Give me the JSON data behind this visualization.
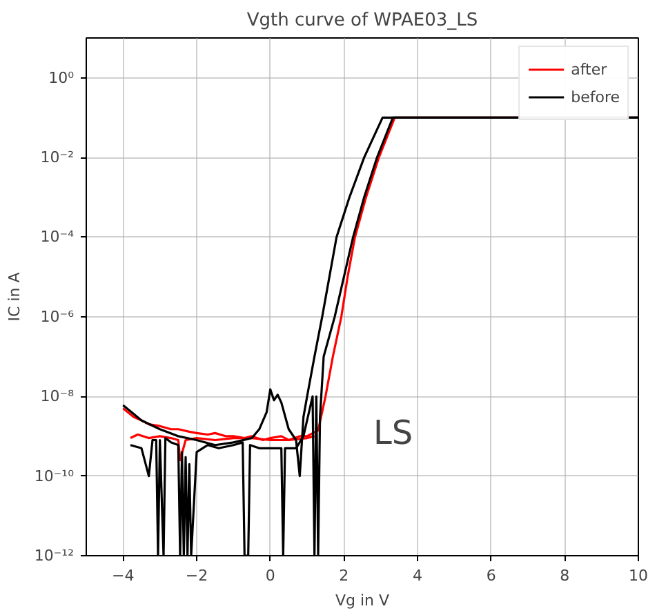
{
  "chart_data": {
    "type": "line",
    "title": "Vgth curve of WPAE03_LS",
    "xlabel": "Vg in V",
    "ylabel": "IC in A",
    "log": "y",
    "grid": true,
    "legend": "top right",
    "line_style": "solid",
    "marker": "none",
    "xlim": [
      -5,
      10
    ],
    "ylim": [
      1e-12,
      10
    ],
    "xticks": [
      {
        "value": -4,
        "label": "−4"
      },
      {
        "value": -2,
        "label": "−2"
      },
      0,
      2,
      4,
      6,
      8,
      10
    ],
    "yticks": [
      {
        "value": 1e-12,
        "label": "10⁻¹²"
      },
      {
        "value": 1e-10,
        "label": "10⁻¹⁰"
      },
      {
        "value": 1e-08,
        "label": "10⁻⁸"
      },
      {
        "value": 1e-06,
        "label": "10⁻⁶"
      },
      {
        "value": 0.0001,
        "label": "10⁻⁴"
      },
      {
        "value": 0.01,
        "label": "10⁻²"
      },
      {
        "value": 1,
        "label": "10⁰"
      }
    ],
    "annotations": [
      "LS"
    ],
    "series": [
      {
        "name": "after",
        "color": "#ff0000",
        "x": [
          -4,
          -3.7,
          -3.5,
          -3.3,
          -3,
          -2.7,
          -2.5,
          -2.2,
          -2,
          -1.7,
          -1.5,
          -1.2,
          -1,
          -0.7,
          -0.5,
          -0.2,
          0,
          0.3,
          0.5,
          0.8,
          1,
          1.3,
          1.5,
          1.7,
          1.93,
          2.1,
          2.3,
          2.6,
          2.95,
          3.38,
          10
        ],
        "values": [
          5e-09,
          3e-09,
          2.5e-09,
          2e-09,
          1.8e-09,
          1.5e-09,
          1.5e-09,
          1.3e-09,
          1.2e-09,
          1.1e-09,
          1.2e-09,
          1e-09,
          1e-09,
          9e-10,
          1e-09,
          8e-10,
          9e-10,
          1e-09,
          8e-10,
          1e-09,
          1e-09,
          1.4e-09,
          1e-08,
          1e-07,
          1e-06,
          1e-05,
          0.0001,
          0.001,
          0.01,
          0.1,
          0.1
        ]
      },
      {
        "color": "#ff0000",
        "x": [
          -3.8,
          -3.6,
          -3.3,
          -3,
          -2.7,
          -2.5,
          -2.45,
          -2.3,
          -2,
          -1.5,
          -1,
          -0.5,
          0,
          0.5,
          1,
          1.2
        ],
        "values": [
          9e-10,
          1.1e-09,
          9e-10,
          1e-09,
          9e-10,
          8e-10,
          2.5e-10,
          8e-10,
          9e-10,
          8e-10,
          9e-10,
          9e-10,
          8e-10,
          8e-10,
          9e-10,
          1e-09
        ]
      },
      {
        "name": "before",
        "color": "#000000",
        "x": [
          -4,
          -3.5,
          -3,
          -2.5,
          -2,
          -1.5,
          -1,
          -0.5,
          -0.3,
          -0.1,
          0,
          0.1,
          0.2,
          0.3,
          0.5,
          0.7,
          0.8,
          0.9,
          1,
          1.2,
          1.41,
          1.8,
          2.15,
          2.55,
          3.05,
          10
        ],
        "values": [
          6e-09,
          2.5e-09,
          1.5e-09,
          1e-09,
          8e-10,
          6e-10,
          7e-10,
          9e-10,
          1.5e-09,
          4e-09,
          1.5e-08,
          8e-09,
          1.1e-08,
          7e-09,
          1.5e-09,
          8e-10,
          1e-10,
          3e-09,
          1e-08,
          1e-07,
          1e-06,
          0.0001,
          0.001,
          0.01,
          0.1,
          0.1
        ]
      },
      {
        "color": "#000000",
        "x": [
          -3.8,
          -3.5,
          -3.3,
          -3.2,
          -3.1,
          -3.05,
          -3,
          -2.9,
          -2.85,
          -2.7,
          -2.5,
          -2.45,
          -2.4,
          -2.35,
          -2.3,
          -2.25,
          -2.2,
          -2.15,
          -2,
          -1.7,
          -1.4,
          -1,
          -0.75,
          -0.7,
          -0.6,
          -0.55,
          -0.3,
          0,
          0.3,
          0.35,
          0.4,
          0.7,
          0.9,
          1.15,
          1.2,
          1.25,
          1.3,
          1.35,
          1.45,
          1.75,
          2.25,
          2.55,
          2.9,
          3.33,
          10
        ],
        "values": [
          6e-10,
          5e-10,
          1e-10,
          8e-10,
          8e-10,
          1e-12,
          8e-10,
          1e-12,
          9e-10,
          7e-10,
          6e-10,
          1e-12,
          4e-10,
          1e-12,
          3e-10,
          1e-12,
          2e-10,
          1e-12,
          4e-10,
          6e-10,
          5e-10,
          6e-10,
          7e-10,
          1e-12,
          1e-12,
          6e-10,
          5e-10,
          5e-10,
          5e-10,
          1e-12,
          5e-10,
          5e-10,
          1e-09,
          1e-08,
          1e-12,
          1e-08,
          1e-12,
          3e-09,
          1e-07,
          1e-06,
          0.0001,
          0.001,
          0.01,
          0.1,
          0.1
        ]
      }
    ]
  }
}
